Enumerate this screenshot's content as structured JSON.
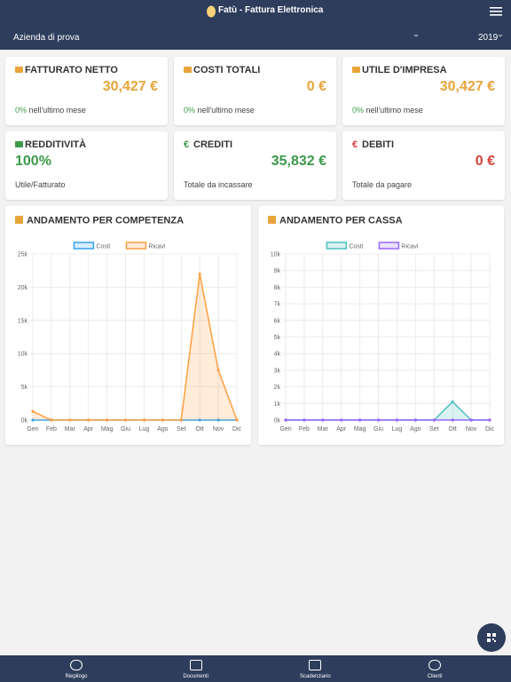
{
  "header": {
    "title": "Fatù - Fattura Elettronica",
    "company": "Azienda di prova",
    "year": "2019"
  },
  "cards": [
    {
      "icon": "",
      "title": "FATTURATO NETTO",
      "value": "30,427 €",
      "change": "0%",
      "note": "nell'ultimo mese",
      "tone": "orange"
    },
    {
      "icon": "",
      "title": "COSTI TOTALI",
      "value": "0 €",
      "change": "0%",
      "note": "nell'ultimo mese",
      "tone": "orange"
    },
    {
      "icon": "",
      "title": "UTILE D'IMPRESA",
      "value": "30,427 €",
      "change": "0%",
      "note": "nell'ultimo mese",
      "tone": "orange"
    },
    {
      "icon": "",
      "title": "REDDITIVITÀ",
      "value": "100%",
      "note": "Utile/Fatturato",
      "tone": "green"
    },
    {
      "icon": "€",
      "title": "CREDITI",
      "value": "35,832 €",
      "note": "Totale da incassare",
      "tone": "green"
    },
    {
      "icon": "€",
      "title": "DEBITI",
      "value": "0 €",
      "note": "Totale da pagare",
      "tone": "red"
    }
  ],
  "chart_data": [
    {
      "type": "line",
      "title": "ANDAMENTO PER COMPETENZA",
      "categories": [
        "Gen",
        "Feb",
        "Mar",
        "Apr",
        "Mag",
        "Giu",
        "Lug",
        "Ago",
        "Set",
        "Ott",
        "Nov",
        "Dic"
      ],
      "series": [
        {
          "name": "Costi",
          "color": "#36a2eb",
          "values": [
            0,
            0,
            0,
            0,
            0,
            0,
            0,
            0,
            0,
            0,
            0,
            0
          ]
        },
        {
          "name": "Ricavi",
          "color": "#ff9f40",
          "values": [
            1300,
            0,
            0,
            0,
            0,
            0,
            0,
            0,
            0,
            22000,
            7500,
            0
          ]
        }
      ],
      "ylim": [
        0,
        25000
      ],
      "yticks": [
        {
          "value": 0,
          "label": "0k"
        },
        {
          "value": 5000,
          "label": "5k"
        },
        {
          "value": 10000,
          "label": "10k"
        },
        {
          "value": 15000,
          "label": "15k"
        },
        {
          "value": 20000,
          "label": "20k"
        },
        {
          "value": 25000,
          "label": "25k"
        }
      ],
      "grid": true
    },
    {
      "type": "line",
      "title": "ANDAMENTO PER CASSA",
      "categories": [
        "Gen",
        "Feb",
        "Mar",
        "Apr",
        "Mag",
        "Giu",
        "Lug",
        "Ago",
        "Set",
        "Ott",
        "Nov",
        "Dic"
      ],
      "series": [
        {
          "name": "Costi",
          "color": "#4bc0c0",
          "values": [
            0,
            0,
            0,
            0,
            0,
            0,
            0,
            0,
            0,
            1100,
            0,
            0
          ]
        },
        {
          "name": "Ricavi",
          "color": "#9966ff",
          "values": [
            0,
            0,
            0,
            0,
            0,
            0,
            0,
            0,
            0,
            0,
            0,
            0
          ]
        }
      ],
      "ylim": [
        0,
        10000
      ],
      "yticks": [
        {
          "value": 0,
          "label": "0k"
        },
        {
          "value": 1000,
          "label": "1k"
        },
        {
          "value": 2000,
          "label": "2k"
        },
        {
          "value": 3000,
          "label": "3k"
        },
        {
          "value": 4000,
          "label": "4k"
        },
        {
          "value": 5000,
          "label": "5k"
        },
        {
          "value": 6000,
          "label": "6k"
        },
        {
          "value": 7000,
          "label": "7k"
        },
        {
          "value": 8000,
          "label": "8k"
        },
        {
          "value": 9000,
          "label": "9k"
        },
        {
          "value": 10000,
          "label": "10k"
        }
      ],
      "grid": true
    }
  ],
  "nav": [
    "Riepilogo",
    "Documenti",
    "Scadenziario",
    "Clienti"
  ]
}
